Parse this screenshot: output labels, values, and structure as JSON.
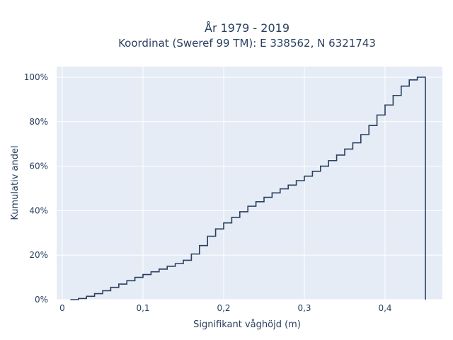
{
  "chart_data": {
    "type": "line",
    "title_line1": "År 1979 - 2019",
    "title_line2": "Koordinat (Sweref 99 TM): E 338562, N 6321743",
    "xlabel": "Signifikant våghöjd (m)",
    "ylabel": "Kumulativ andel",
    "xlim": [
      -0.01,
      0.47
    ],
    "ylim": [
      0,
      1.0
    ],
    "x_ticks": [
      0,
      0.1,
      0.2,
      0.3,
      0.4
    ],
    "x_tick_labels": [
      "0",
      "0,1",
      "0,2",
      "0,3",
      "0,4"
    ],
    "y_ticks": [
      0,
      0.2,
      0.4,
      0.6,
      0.8,
      1.0
    ],
    "y_tick_labels": [
      "0%",
      "20%",
      "40%",
      "60%",
      "80%",
      "100%"
    ],
    "grid": true,
    "background": "#e5ecf6",
    "line_color": "#2a3f5f",
    "step": "hv",
    "series": [
      {
        "x": [
          0.01,
          0.02,
          0.03,
          0.04,
          0.05,
          0.06,
          0.07,
          0.08,
          0.09,
          0.1,
          0.11,
          0.12,
          0.13,
          0.14,
          0.15,
          0.16,
          0.17,
          0.18,
          0.19,
          0.2,
          0.21,
          0.22,
          0.23,
          0.24,
          0.25,
          0.26,
          0.27,
          0.28,
          0.29,
          0.3,
          0.31,
          0.32,
          0.33,
          0.34,
          0.35,
          0.36,
          0.37,
          0.38,
          0.39,
          0.4,
          0.41,
          0.42,
          0.43,
          0.44,
          0.45
        ],
        "y": [
          0.0,
          0.005,
          0.015,
          0.027,
          0.04,
          0.055,
          0.07,
          0.085,
          0.1,
          0.113,
          0.125,
          0.137,
          0.15,
          0.162,
          0.177,
          0.205,
          0.243,
          0.285,
          0.318,
          0.345,
          0.37,
          0.395,
          0.42,
          0.44,
          0.46,
          0.48,
          0.498,
          0.515,
          0.535,
          0.555,
          0.577,
          0.6,
          0.625,
          0.65,
          0.677,
          0.705,
          0.742,
          0.783,
          0.83,
          0.875,
          0.918,
          0.96,
          0.988,
          1.0,
          0.0
        ]
      }
    ]
  }
}
